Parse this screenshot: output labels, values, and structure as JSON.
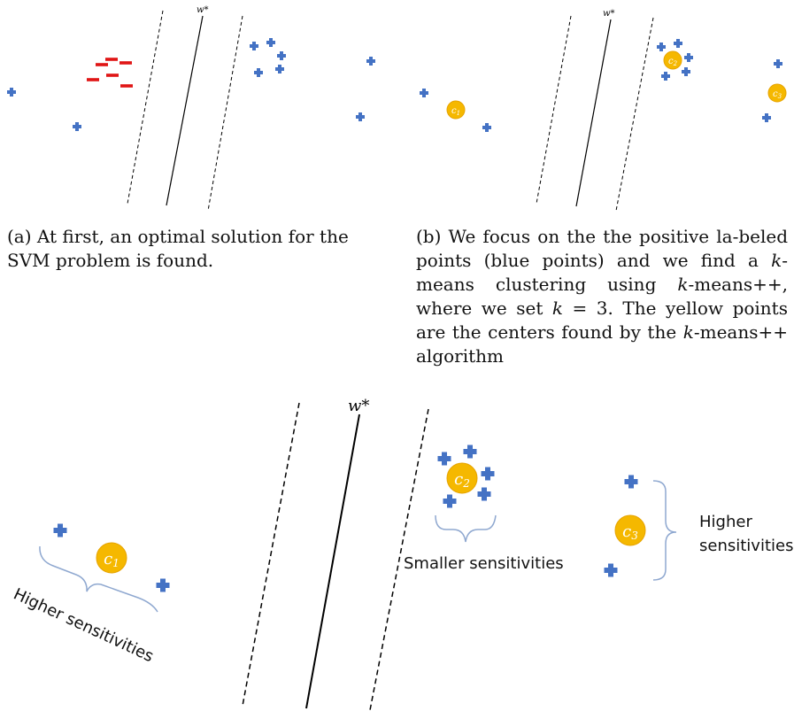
{
  "panel_a": {
    "w_label": "w*",
    "caption": "(a) At first, an optimal solution for the SVM problem is found."
  },
  "panel_b": {
    "w_label": "w*",
    "centers": [
      "c1",
      "c2",
      "c3"
    ],
    "caption_parts": {
      "p1": "(b) We focus on the the positive la-beled points (blue points) and we find a ",
      "k1": "k",
      "p2": "-means clustering using ",
      "k2": "k",
      "p3": "-means++, where we set ",
      "k3": "k",
      "p4": " = 3. The yellow points are the centers found by the ",
      "k4": "k",
      "p5": "-means++ algorithm"
    }
  },
  "panel_c": {
    "w_label": "w*",
    "centers": [
      "c1",
      "c2",
      "c3"
    ],
    "labels": {
      "higher_left": "Higher sensitivities",
      "smaller": "Smaller sensitivities",
      "higher_right_line1": "Higher",
      "higher_right_line2": "sensitivities"
    }
  },
  "colors": {
    "positive_point": "#4472c4",
    "negative_point": "#e01515",
    "center_fill": "#f5b800",
    "center_stroke": "#e6a300",
    "brace": "#8fa8d0"
  }
}
